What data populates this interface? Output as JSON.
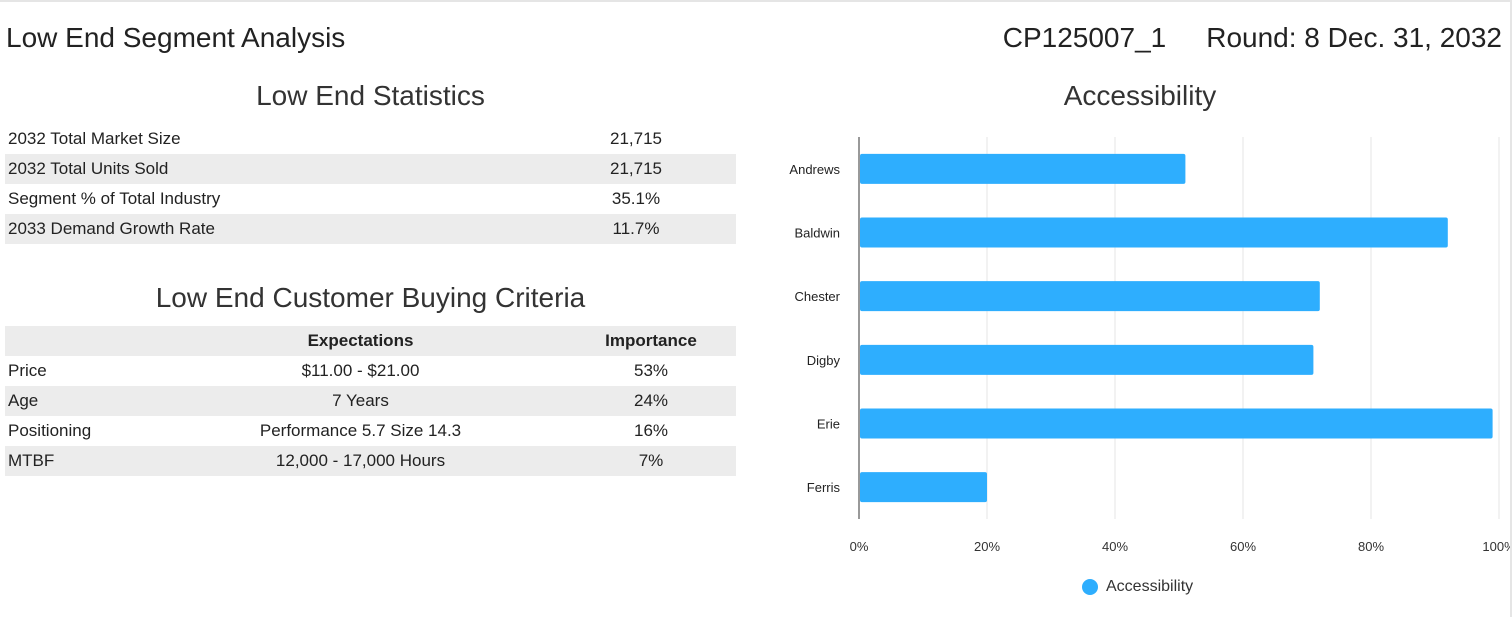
{
  "header": {
    "title": "Low End Segment Analysis",
    "code": "CP125007_1",
    "round": "Round: 8 Dec. 31, 2032"
  },
  "statistics": {
    "title": "Low End Statistics",
    "rows": [
      {
        "label": "2032 Total Market Size",
        "value": "21,715"
      },
      {
        "label": "2032 Total Units Sold",
        "value": "21,715"
      },
      {
        "label": "Segment % of Total Industry",
        "value": "35.1%"
      },
      {
        "label": "2033 Demand Growth Rate",
        "value": "11.7%"
      }
    ]
  },
  "criteria": {
    "title": "Low End Customer Buying Criteria",
    "headers": [
      "",
      "Expectations",
      "Importance"
    ],
    "rows": [
      {
        "label": "Price",
        "expectation": "$11.00 - $21.00",
        "importance": "53%"
      },
      {
        "label": "Age",
        "expectation": "7 Years",
        "importance": "24%"
      },
      {
        "label": "Positioning",
        "expectation": "Performance 5.7 Size 14.3",
        "importance": "16%"
      },
      {
        "label": "MTBF",
        "expectation": "12,000 - 17,000 Hours",
        "importance": "7%"
      }
    ]
  },
  "chart_data": {
    "type": "bar",
    "orientation": "horizontal",
    "title": "Accessibility",
    "categories": [
      "Andrews",
      "Baldwin",
      "Chester",
      "Digby",
      "Erie",
      "Ferris"
    ],
    "series": [
      {
        "name": "Accessibility",
        "values": [
          51,
          92,
          72,
          71,
          99,
          20
        ],
        "color": "#2eaefe"
      }
    ],
    "xlim": [
      0,
      100
    ],
    "xticks": [
      "0%",
      "20%",
      "40%",
      "60%",
      "80%",
      "100%"
    ],
    "grid": true,
    "legend": "bottom"
  }
}
